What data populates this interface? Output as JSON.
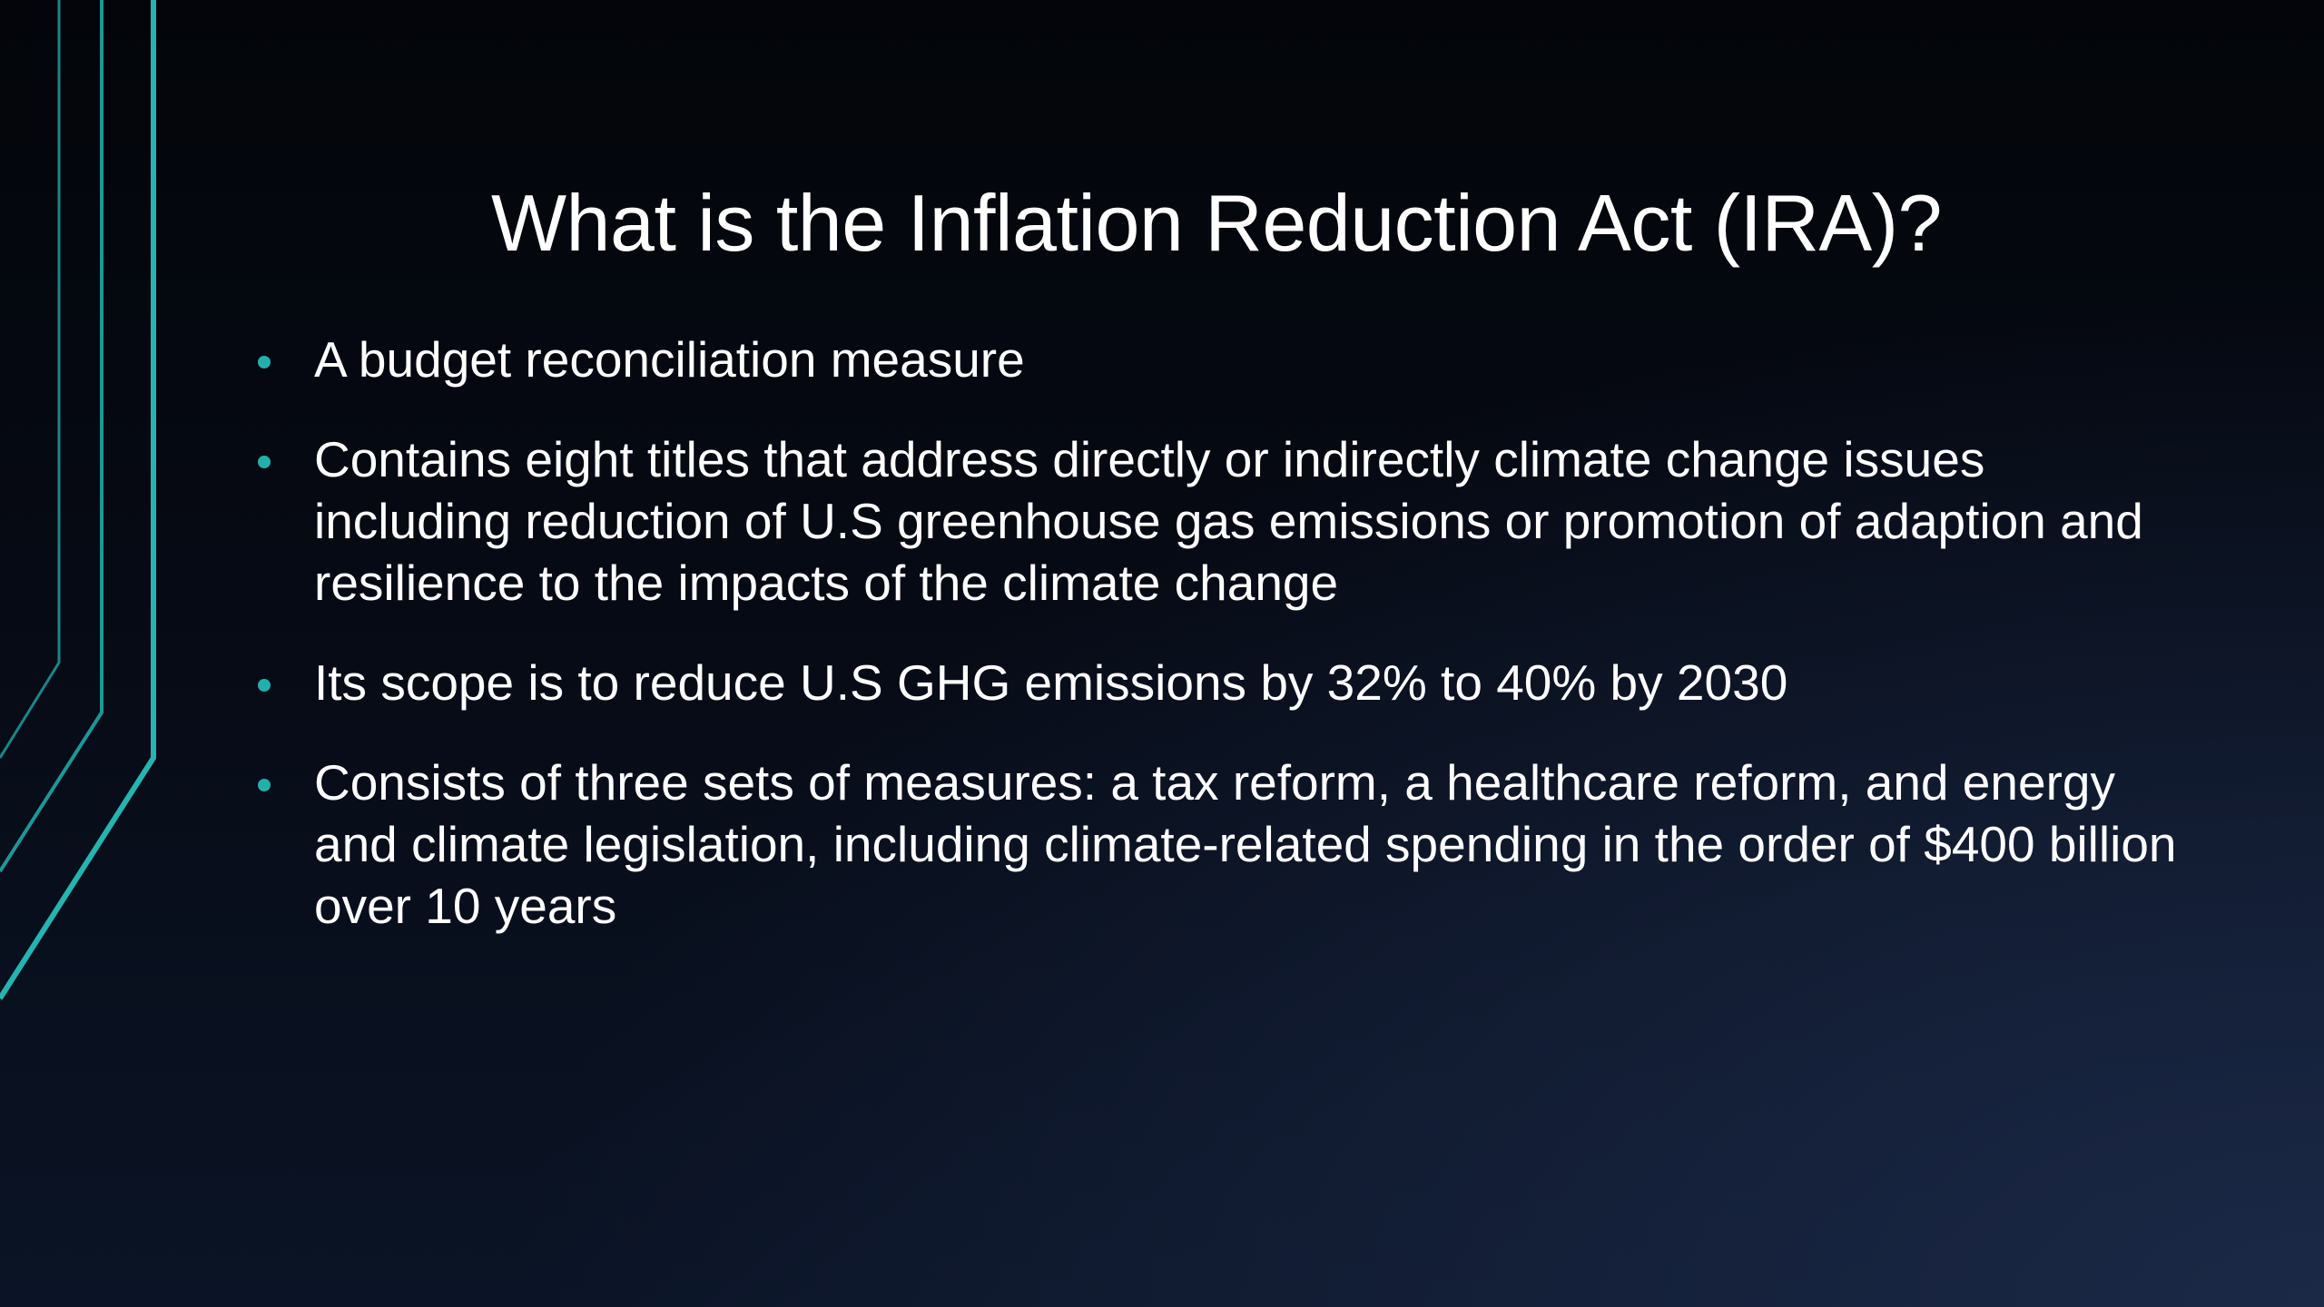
{
  "slide": {
    "title": "What is the Inflation Reduction Act (IRA)?",
    "bullets": [
      {
        "text": "A budget reconciliation measure"
      },
      {
        "text": "Contains eight titles that address directly or indirectly climate change issues including reduction of U.S greenhouse gas emissions or promotion of adaption and resilience to the impacts of the climate change"
      },
      {
        "text": "Its scope is to reduce U.S GHG emissions by 32% to 40% by 2030"
      },
      {
        "text": "Consists of three sets of measures: a tax reform, a healthcare reform, and energy and climate legislation, including climate-related spending in the order of $400 billion over 10 years"
      }
    ]
  },
  "theme": {
    "accent": "#22b0ad",
    "background": "#060a14",
    "text": "#ffffff"
  }
}
